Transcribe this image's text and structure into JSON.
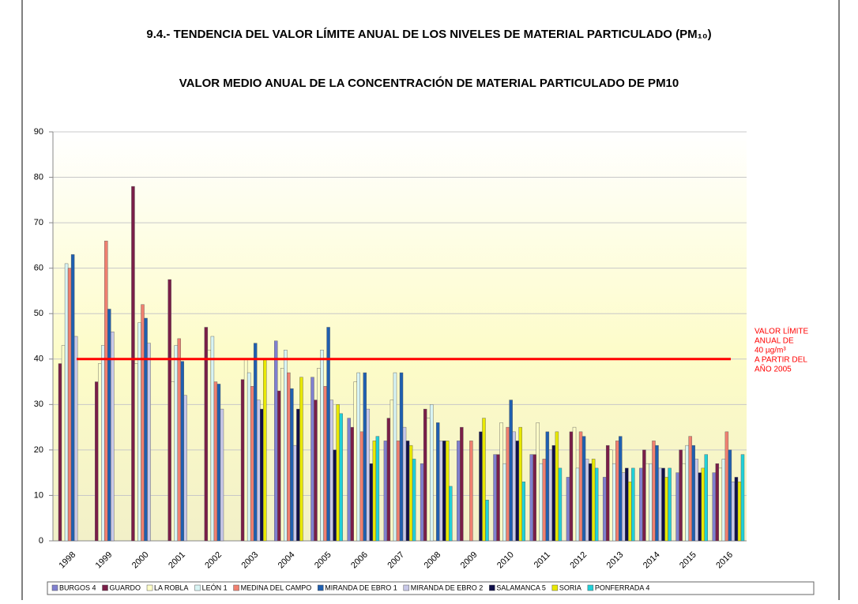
{
  "chart_data": {
    "type": "bar",
    "page_title": "9.4.- TENDENCIA DEL VALOR LÍMITE ANUAL DE LOS NIVELES DE MATERIAL PARTICULADO (PM₁₀)",
    "title": "VALOR MEDIO ANUAL DE LA CONCENTRACIÓN DE MATERIAL PARTICULADO DE PM10",
    "categories": [
      "1998",
      "1999",
      "2000",
      "2001",
      "2002",
      "2003",
      "2004",
      "2005",
      "2006",
      "2007",
      "2008",
      "2009",
      "2010",
      "2011",
      "2012",
      "2013",
      "2014",
      "2015",
      "2016"
    ],
    "series": [
      {
        "name": "BURGOS 4",
        "color": "#8080d0",
        "values": [
          null,
          null,
          null,
          null,
          null,
          null,
          44,
          36,
          27,
          22,
          17,
          22,
          19,
          19,
          14,
          14,
          16,
          15,
          15
        ]
      },
      {
        "name": "GUARDO",
        "color": "#7a1e48",
        "values": [
          39,
          35,
          78,
          57.5,
          47,
          35.5,
          33,
          31,
          25,
          27,
          29,
          25,
          19,
          19,
          24,
          21,
          20,
          20,
          17
        ]
      },
      {
        "name": "LA ROBLA",
        "color": "#ffffc8",
        "values": [
          43,
          39,
          39,
          35,
          42,
          40,
          38,
          38,
          35,
          31,
          27,
          null,
          26,
          26,
          25,
          20,
          17,
          17,
          16
        ]
      },
      {
        "name": "LEÓN 1",
        "color": "#d8f4f4",
        "values": [
          61,
          43,
          48,
          43,
          45,
          37,
          42,
          42,
          37,
          37,
          30,
          null,
          17,
          17,
          16,
          17,
          17,
          21,
          18
        ]
      },
      {
        "name": "MEDINA DEL CAMPO",
        "color": "#f08070",
        "values": [
          60,
          66,
          52,
          44.5,
          35,
          34,
          37,
          34,
          24,
          22,
          null,
          22,
          25,
          18,
          24,
          22,
          22,
          23,
          24
        ]
      },
      {
        "name": "MIRANDA DE EBRO 1",
        "color": "#1f5fb0",
        "values": [
          63,
          51,
          49,
          39.5,
          34.5,
          43.5,
          33.5,
          47,
          37,
          37,
          26,
          null,
          31,
          24,
          23,
          23,
          21,
          21,
          20
        ]
      },
      {
        "name": "MIRANDA DE EBRO 2",
        "color": "#c8c8e8",
        "values": [
          45,
          46,
          43.5,
          32,
          29,
          31,
          21,
          31,
          29,
          25,
          22,
          null,
          24,
          20,
          18,
          15,
          16,
          18,
          13
        ]
      },
      {
        "name": "SALAMANCA 5",
        "color": "#10104a",
        "values": [
          null,
          null,
          null,
          null,
          null,
          29,
          29,
          20,
          17,
          22,
          22,
          24,
          22,
          21,
          17,
          16,
          16,
          15,
          14
        ]
      },
      {
        "name": "SORIA",
        "color": "#e8e800",
        "values": [
          null,
          null,
          null,
          null,
          null,
          40,
          36,
          30,
          22,
          21,
          22,
          27,
          25,
          24,
          18,
          13,
          14,
          16,
          13
        ]
      },
      {
        "name": "PONFERRADA 4",
        "color": "#20d0d8",
        "values": [
          null,
          null,
          null,
          null,
          null,
          null,
          null,
          28,
          23,
          18,
          12,
          9,
          13,
          16,
          16,
          16,
          16,
          19,
          19
        ]
      }
    ],
    "ylim": [
      0,
      90
    ],
    "yticks": [
      0,
      10,
      20,
      30,
      40,
      50,
      60,
      70,
      80,
      90
    ],
    "grid": true,
    "reference_line": {
      "value": 40,
      "color": "#ff0000"
    },
    "annotation": [
      "VALOR LÍMITE",
      "ANUAL DE",
      "40 µg/m³",
      "A PARTIR DEL",
      "AÑO 2005"
    ]
  }
}
